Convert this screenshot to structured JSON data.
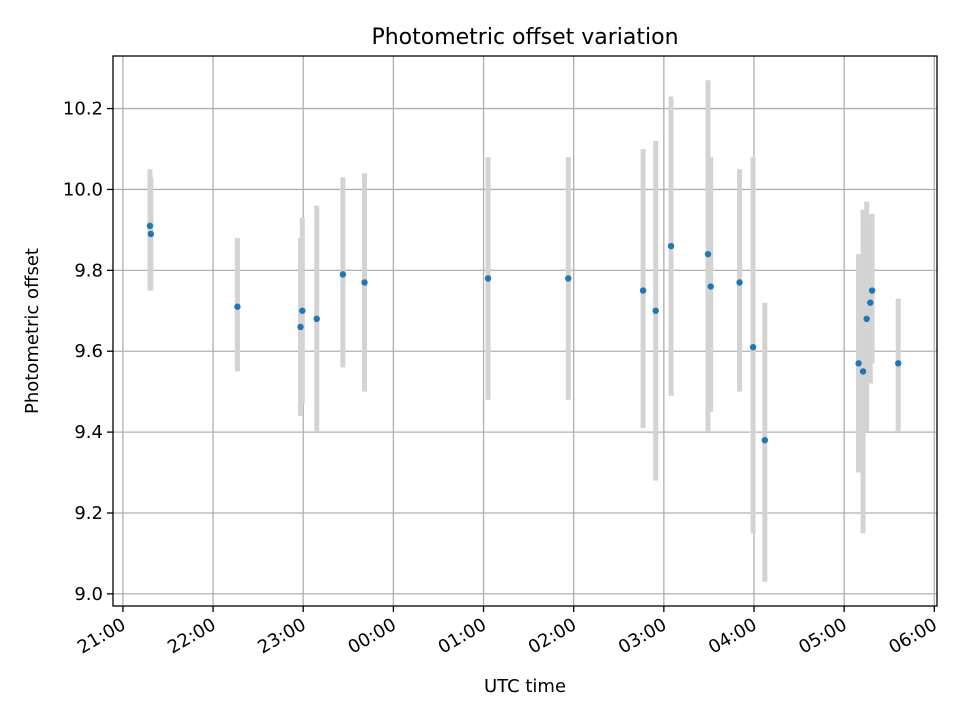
{
  "chart_data": {
    "type": "scatter",
    "title": "Photometric offset variation",
    "xlabel": "UTC time",
    "ylabel": "Photometric offset",
    "x_tick_labels": [
      "21:00",
      "22:00",
      "23:00",
      "00:00",
      "01:00",
      "02:00",
      "03:00",
      "04:00",
      "05:00",
      "06:00"
    ],
    "y_tick_labels": [
      "9.0",
      "9.2",
      "9.4",
      "9.6",
      "9.8",
      "10.0",
      "10.2"
    ],
    "x_ticks_hours": [
      0,
      1,
      2,
      3,
      4,
      5,
      6,
      7,
      8,
      9
    ],
    "y_ticks": [
      9.0,
      9.2,
      9.4,
      9.6,
      9.8,
      10.0,
      10.2
    ],
    "xlim_hours": [
      -0.11,
      9.03
    ],
    "ylim": [
      8.97,
      10.33
    ],
    "grid": true,
    "colors": {
      "point": "#1f77b4",
      "errorbar": "#d3d3d3",
      "grid": "#b0b0b0"
    },
    "points": [
      {
        "time": "21:18",
        "t": 0.3,
        "y": 9.91,
        "lo": 9.75,
        "hi": 10.05
      },
      {
        "time": "21:19",
        "t": 0.31,
        "y": 9.89,
        "lo": 9.75,
        "hi": 10.03
      },
      {
        "time": "22:16",
        "t": 1.27,
        "y": 9.71,
        "lo": 9.55,
        "hi": 9.88
      },
      {
        "time": "22:58",
        "t": 1.97,
        "y": 9.66,
        "lo": 9.44,
        "hi": 9.88
      },
      {
        "time": "22:59",
        "t": 1.99,
        "y": 9.7,
        "lo": 9.47,
        "hi": 9.93
      },
      {
        "time": "23:09",
        "t": 2.15,
        "y": 9.68,
        "lo": 9.4,
        "hi": 9.96
      },
      {
        "time": "23:26",
        "t": 2.44,
        "y": 9.79,
        "lo": 9.56,
        "hi": 10.03
      },
      {
        "time": "23:41",
        "t": 2.68,
        "y": 9.77,
        "lo": 9.5,
        "hi": 10.04
      },
      {
        "time": "01:03",
        "t": 4.05,
        "y": 9.78,
        "lo": 9.48,
        "hi": 10.08
      },
      {
        "time": "01:56",
        "t": 4.94,
        "y": 9.78,
        "lo": 9.48,
        "hi": 10.08
      },
      {
        "time": "02:46",
        "t": 5.77,
        "y": 9.75,
        "lo": 9.41,
        "hi": 10.1
      },
      {
        "time": "02:54",
        "t": 5.91,
        "y": 9.7,
        "lo": 9.28,
        "hi": 10.12
      },
      {
        "time": "03:05",
        "t": 6.08,
        "y": 9.86,
        "lo": 9.49,
        "hi": 10.23
      },
      {
        "time": "03:29",
        "t": 6.49,
        "y": 9.84,
        "lo": 9.4,
        "hi": 10.27
      },
      {
        "time": "03:31",
        "t": 6.52,
        "y": 9.76,
        "lo": 9.45,
        "hi": 10.08
      },
      {
        "time": "03:51",
        "t": 6.84,
        "y": 9.77,
        "lo": 9.5,
        "hi": 10.05
      },
      {
        "time": "04:00",
        "t": 6.99,
        "y": 9.61,
        "lo": 9.15,
        "hi": 10.08
      },
      {
        "time": "04:07",
        "t": 7.12,
        "y": 9.38,
        "lo": 9.03,
        "hi": 9.72
      },
      {
        "time": "05:10",
        "t": 8.16,
        "y": 9.57,
        "lo": 9.3,
        "hi": 9.84
      },
      {
        "time": "05:12",
        "t": 8.21,
        "y": 9.55,
        "lo": 9.15,
        "hi": 9.95
      },
      {
        "time": "05:15",
        "t": 8.25,
        "y": 9.68,
        "lo": 9.4,
        "hi": 9.97
      },
      {
        "time": "05:17",
        "t": 8.29,
        "y": 9.72,
        "lo": 9.52,
        "hi": 9.93
      },
      {
        "time": "05:19",
        "t": 8.31,
        "y": 9.75,
        "lo": 9.57,
        "hi": 9.94
      },
      {
        "time": "05:36",
        "t": 8.6,
        "y": 9.57,
        "lo": 9.4,
        "hi": 9.73
      }
    ]
  }
}
